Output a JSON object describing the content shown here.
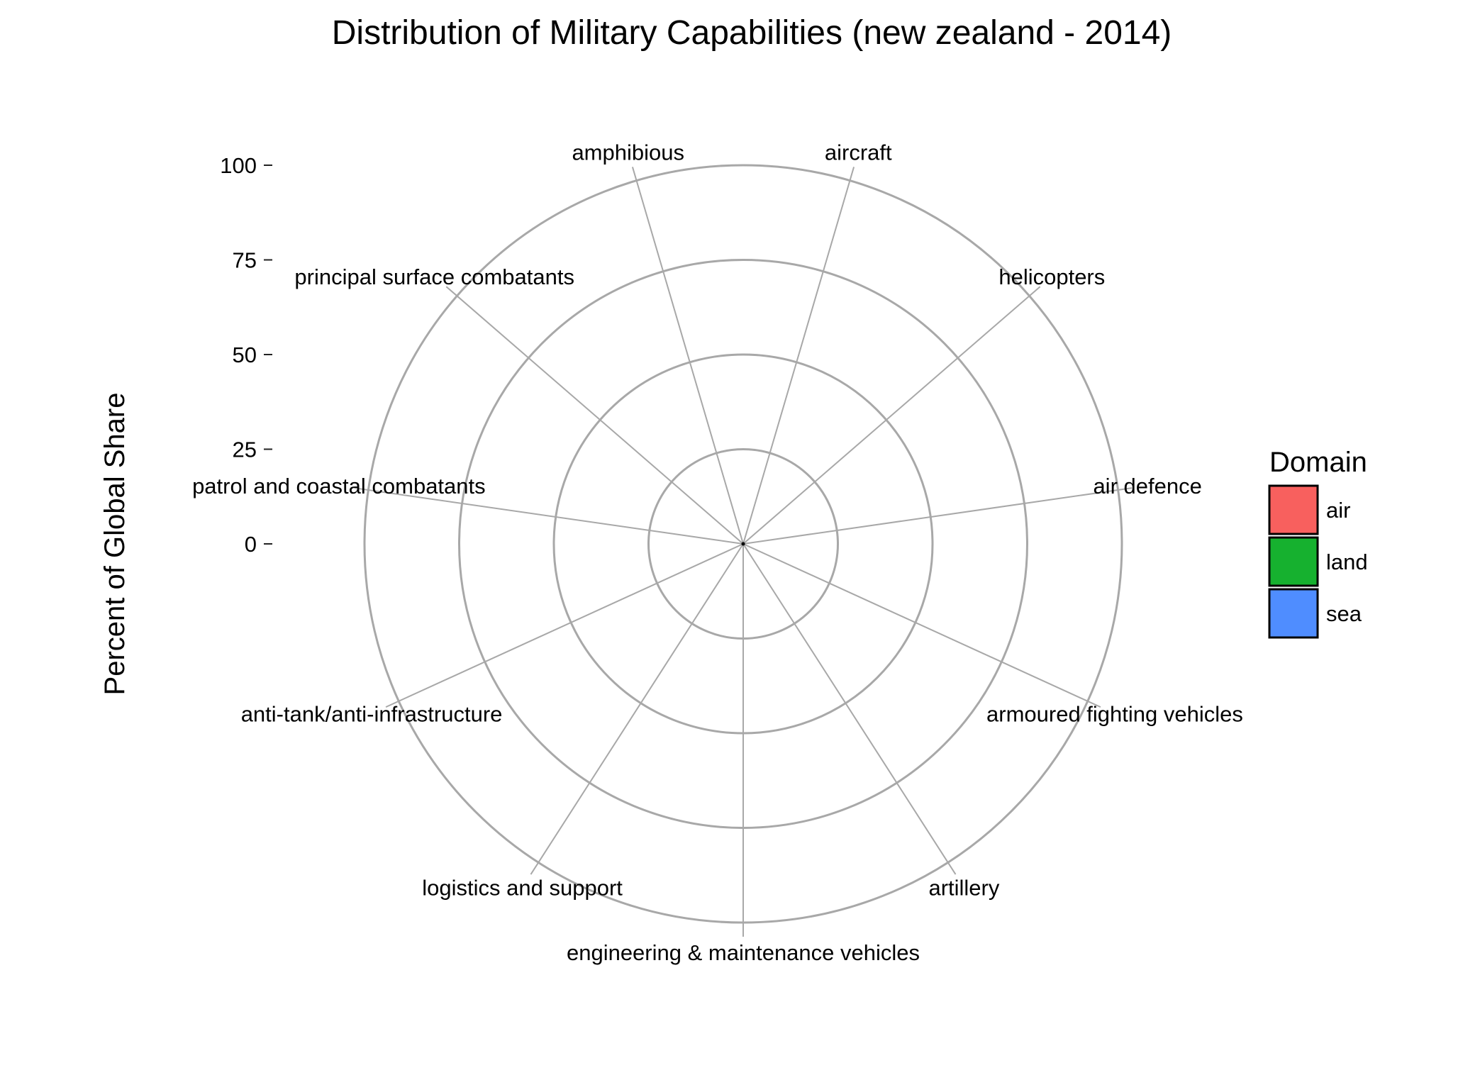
{
  "chart_data": {
    "type": "bar",
    "coord": "polar",
    "title": "Distribution of Military Capabilities (new zealand - 2014)",
    "xlabel": "",
    "ylabel": "Percent of Global Share",
    "ylim": [
      0,
      100
    ],
    "yticks": [
      0,
      25,
      50,
      75,
      100
    ],
    "yticklabels": [
      "0",
      "25",
      "50",
      "75",
      "100"
    ],
    "grid": true,
    "categories": [
      "aircraft",
      "helicopters",
      "air defence",
      "armoured fighting vehicles",
      "artillery",
      "engineering & maintenance vehicles",
      "logistics and support",
      "anti-tank/anti-infrastructure",
      "patrol and coastal combatants",
      "principal surface combatants",
      "amphibious"
    ],
    "series": [
      {
        "name": "air",
        "values": [
          0,
          0,
          0,
          null,
          null,
          null,
          null,
          null,
          null,
          null,
          null
        ]
      },
      {
        "name": "land",
        "values": [
          null,
          null,
          null,
          0,
          0,
          0,
          0,
          0,
          null,
          null,
          null
        ]
      },
      {
        "name": "sea",
        "values": [
          null,
          null,
          null,
          null,
          null,
          null,
          null,
          null,
          0,
          0,
          0
        ]
      }
    ],
    "legend": {
      "title": "Domain",
      "placement": "right",
      "entries": [
        {
          "label": "air",
          "color": "#f8605e"
        },
        {
          "label": "land",
          "color": "#16b12f"
        },
        {
          "label": "sea",
          "color": "#4f8dff"
        }
      ]
    }
  }
}
